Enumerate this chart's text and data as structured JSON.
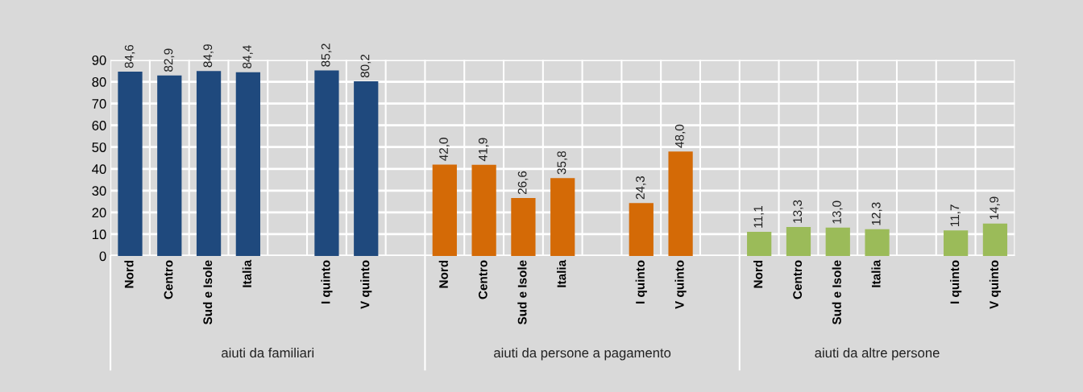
{
  "chart_data": {
    "type": "bar",
    "categories": [
      "Nord",
      "Centro",
      "Sud e Isole",
      "Italia",
      null,
      "I quinto",
      "V quinto",
      null,
      "Nord",
      "Centro",
      "Sud e Isole",
      "Italia",
      null,
      "I quinto",
      "V quinto",
      null,
      "Nord",
      "Centro",
      "Sud e Isole",
      "Italia",
      null,
      "I quinto",
      "V quinto"
    ],
    "series": [
      {
        "color": "#1f497d",
        "values": [
          84.6,
          82.9,
          84.9,
          84.4,
          null,
          85.2,
          80.2,
          null,
          null,
          null,
          null,
          null,
          null,
          null,
          null,
          null,
          null,
          null,
          null,
          null,
          null,
          null,
          null
        ],
        "value_labels": [
          "84,6",
          "82,9",
          "84,9",
          "84,4",
          null,
          "85,2",
          "80,2",
          null,
          null,
          null,
          null,
          null,
          null,
          null,
          null,
          null,
          null,
          null,
          null,
          null,
          null,
          null,
          null
        ]
      },
      {
        "color": "#d46a06",
        "values": [
          null,
          null,
          null,
          null,
          null,
          null,
          null,
          null,
          42.0,
          41.9,
          26.6,
          35.8,
          null,
          24.3,
          48.0,
          null,
          null,
          null,
          null,
          null,
          null,
          null,
          null
        ],
        "value_labels": [
          null,
          null,
          null,
          null,
          null,
          null,
          null,
          null,
          "42,0",
          "41,9",
          "26,6",
          "35,8",
          null,
          "24,3",
          "48,0",
          null,
          null,
          null,
          null,
          null,
          null,
          null,
          null
        ]
      },
      {
        "color": "#9bbb59",
        "values": [
          null,
          null,
          null,
          null,
          null,
          null,
          null,
          null,
          null,
          null,
          null,
          null,
          null,
          null,
          null,
          null,
          11.1,
          13.3,
          13.0,
          12.3,
          null,
          11.7,
          14.9
        ],
        "value_labels": [
          null,
          null,
          null,
          null,
          null,
          null,
          null,
          null,
          null,
          null,
          null,
          null,
          null,
          null,
          null,
          null,
          "11,1",
          "13,3",
          "13,0",
          "12,3",
          null,
          "11,7",
          "14,9"
        ]
      }
    ],
    "annotations": [
      "aiuti da familiari",
      "aiuti da persone a pagamento",
      "aiuti da altre persone"
    ],
    "ylim": [
      0,
      90
    ],
    "yticks": [
      0,
      10,
      20,
      30,
      40,
      50,
      60,
      70,
      80,
      90
    ],
    "grid": true,
    "legend": false
  }
}
